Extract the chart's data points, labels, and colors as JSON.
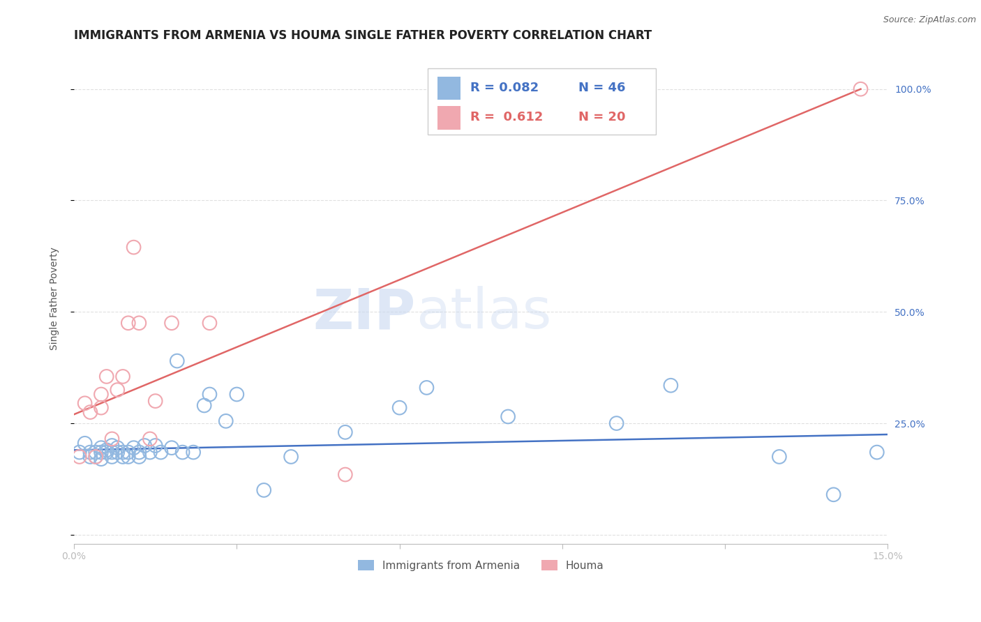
{
  "title": "IMMIGRANTS FROM ARMENIA VS HOUMA SINGLE FATHER POVERTY CORRELATION CHART",
  "source": "Source: ZipAtlas.com",
  "ylabel": "Single Father Poverty",
  "xlim": [
    0,
    0.15
  ],
  "ylim": [
    -0.02,
    1.08
  ],
  "x_ticks": [
    0.0,
    0.03,
    0.06,
    0.09,
    0.12,
    0.15
  ],
  "y_ticks_right": [
    0.0,
    0.25,
    0.5,
    0.75,
    1.0
  ],
  "y_tick_labels_right": [
    "",
    "25.0%",
    "50.0%",
    "75.0%",
    "100.0%"
  ],
  "blue_color": "#92b8e0",
  "pink_color": "#f0a8b0",
  "blue_line_color": "#4472c4",
  "pink_line_color": "#e06666",
  "legend_blue_r": "R = 0.082",
  "legend_blue_n": "N = 46",
  "legend_pink_r": "R =  0.612",
  "legend_pink_n": "N = 20",
  "background_color": "#ffffff",
  "grid_color": "#e0e0e0",
  "blue_scatter_x": [
    0.001,
    0.002,
    0.003,
    0.003,
    0.004,
    0.004,
    0.005,
    0.005,
    0.005,
    0.006,
    0.006,
    0.007,
    0.007,
    0.007,
    0.008,
    0.008,
    0.009,
    0.009,
    0.01,
    0.01,
    0.011,
    0.012,
    0.012,
    0.013,
    0.014,
    0.015,
    0.016,
    0.018,
    0.019,
    0.02,
    0.022,
    0.024,
    0.025,
    0.028,
    0.03,
    0.035,
    0.04,
    0.05,
    0.06,
    0.065,
    0.08,
    0.1,
    0.11,
    0.13,
    0.14,
    0.148
  ],
  "blue_scatter_y": [
    0.185,
    0.205,
    0.185,
    0.175,
    0.185,
    0.175,
    0.195,
    0.185,
    0.17,
    0.185,
    0.19,
    0.2,
    0.185,
    0.175,
    0.185,
    0.195,
    0.185,
    0.175,
    0.185,
    0.175,
    0.195,
    0.185,
    0.175,
    0.2,
    0.185,
    0.2,
    0.185,
    0.195,
    0.39,
    0.185,
    0.185,
    0.29,
    0.315,
    0.255,
    0.315,
    0.1,
    0.175,
    0.23,
    0.285,
    0.33,
    0.265,
    0.25,
    0.335,
    0.175,
    0.09,
    0.185
  ],
  "pink_scatter_x": [
    0.001,
    0.002,
    0.003,
    0.004,
    0.005,
    0.005,
    0.006,
    0.007,
    0.008,
    0.009,
    0.01,
    0.011,
    0.012,
    0.014,
    0.015,
    0.018,
    0.025,
    0.05,
    0.08,
    0.145
  ],
  "pink_scatter_y": [
    0.175,
    0.295,
    0.275,
    0.175,
    0.315,
    0.285,
    0.355,
    0.215,
    0.325,
    0.355,
    0.475,
    0.645,
    0.475,
    0.215,
    0.3,
    0.475,
    0.475,
    0.135,
    1.0,
    1.0
  ],
  "blue_line_x": [
    0.0,
    0.15
  ],
  "blue_line_y": [
    0.19,
    0.225
  ],
  "pink_line_x": [
    0.0,
    0.145
  ],
  "pink_line_y": [
    0.27,
    1.0
  ],
  "title_fontsize": 12,
  "axis_label_fontsize": 10,
  "tick_fontsize": 10,
  "legend_fontsize": 13
}
